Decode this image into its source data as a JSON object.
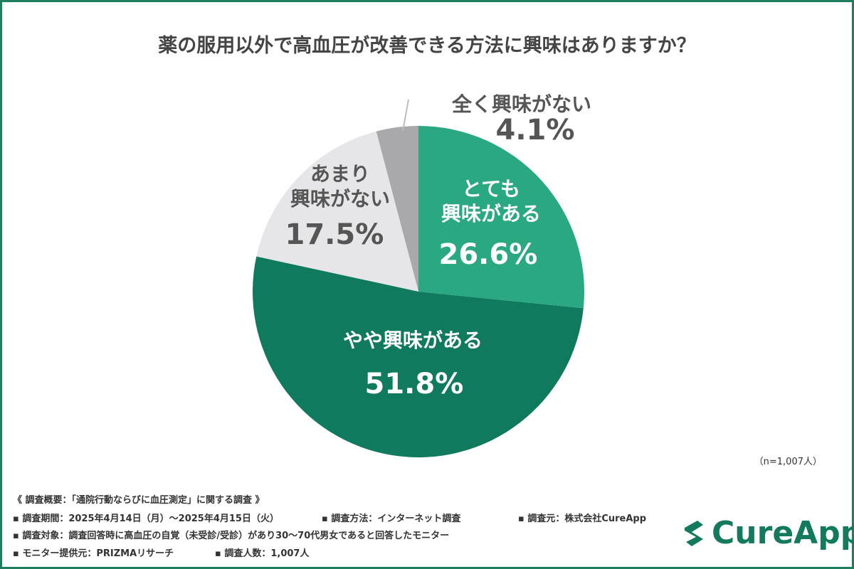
{
  "chart_data": {
    "type": "pie",
    "title": "薬の服用以外で高血圧が改善できる方法に興味はありますか？",
    "categories": [
      "とても\n興味がある",
      "やや興味がある",
      "あまり\n興味がない",
      "全く興味がない"
    ],
    "values": [
      26.6,
      51.8,
      17.5,
      4.1
    ],
    "value_labels": [
      "26.6%",
      "51.8%",
      "17.5%",
      "4.1%"
    ],
    "colors": [
      "#2aa882",
      "#0f7a5e",
      "#e6e5e8",
      "#a9a8ab"
    ],
    "note": "（n=1,007人）"
  },
  "footer": {
    "heading": "《 調査概要：「通院行動ならびに血圧測定」に関する調査 》",
    "items": [
      "▪ 調査期間：2025年4月14日（月）〜2025年4月15日（火）",
      "▪ 調査方法：インターネット調査",
      "▪ 調査元：株式会社CureApp",
      "▪ 調査対象：調査回答時に高血圧の自覚（未受診/受診）があり30〜70代男女であると回答したモニター",
      "▪ モニター提供元：PRIZMAリサーチ",
      "▪ 調査人数：1,007人"
    ],
    "logo": "CureApp"
  }
}
